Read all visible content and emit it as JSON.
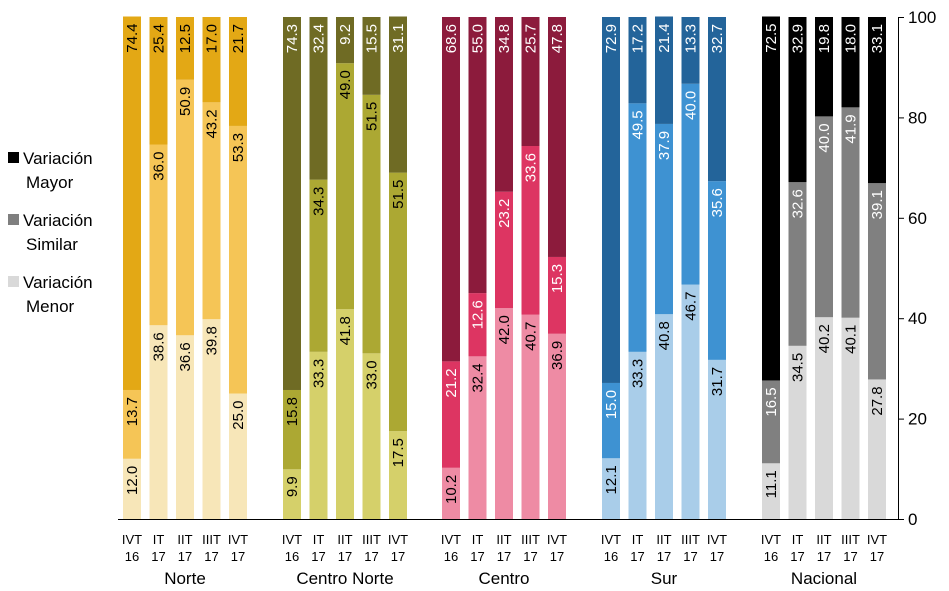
{
  "chart_data": {
    "type": "bar",
    "stacked": true,
    "orientation": "vertical",
    "title": "",
    "xlabel": "",
    "ylabel": "",
    "ylim": [
      0,
      100
    ],
    "y_ticks": [
      0,
      20,
      40,
      60,
      80,
      100
    ],
    "y_axis_side": "right",
    "grid": false,
    "legend_position": "left",
    "periods": [
      {
        "line1": "IVT",
        "line2": "16"
      },
      {
        "line1": "IT",
        "line2": "17"
      },
      {
        "line1": "IIT",
        "line2": "17"
      },
      {
        "line1": "IIIT",
        "line2": "17"
      },
      {
        "line1": "IVT",
        "line2": "17"
      }
    ],
    "series_order": [
      "Menor",
      "Similar",
      "Mayor"
    ],
    "legend": [
      {
        "key": "Mayor",
        "line1": "Variación",
        "line2": "Mayor",
        "color": "#000000"
      },
      {
        "key": "Similar",
        "line1": "Variación",
        "line2": "Similar",
        "color": "#7f7f7f"
      },
      {
        "key": "Menor",
        "line1": "Variación",
        "line2": "Menor",
        "color": "#d9d9d9"
      }
    ],
    "groups": [
      {
        "name": "Norte",
        "colors": {
          "Menor": "#f7e6b8",
          "Similar": "#f5c556",
          "Mayor": "#e3a815"
        },
        "label_colors": {
          "Menor": "#000000",
          "Similar": "#000000",
          "Mayor": "#000000"
        },
        "values": {
          "Menor": [
            12.0,
            38.6,
            36.6,
            39.8,
            25.0
          ],
          "Similar": [
            13.7,
            36.0,
            50.9,
            43.2,
            53.3
          ],
          "Mayor": [
            74.4,
            25.4,
            12.5,
            17.0,
            21.7
          ]
        }
      },
      {
        "name": "Centro Norte",
        "colors": {
          "Menor": "#d5d06a",
          "Similar": "#aca833",
          "Mayor": "#6f6b24"
        },
        "label_colors": {
          "Menor": "#000000",
          "Similar": "#000000",
          "Mayor": "#ffffff"
        },
        "values": {
          "Menor": [
            9.9,
            33.3,
            41.8,
            33.0,
            17.5
          ],
          "Similar": [
            15.8,
            34.3,
            49.0,
            51.5,
            51.5
          ],
          "Mayor": [
            74.3,
            32.4,
            9.2,
            15.5,
            31.1
          ]
        }
      },
      {
        "name": "Centro",
        "colors": {
          "Menor": "#ee8ba4",
          "Similar": "#dd3562",
          "Mayor": "#8c1b3c"
        },
        "label_colors": {
          "Menor": "#000000",
          "Similar": "#ffffff",
          "Mayor": "#ffffff"
        },
        "values": {
          "Menor": [
            10.2,
            32.4,
            42.0,
            40.7,
            36.9
          ],
          "Similar": [
            21.2,
            12.6,
            23.2,
            33.6,
            15.3
          ],
          "Mayor": [
            68.6,
            55.0,
            34.8,
            25.7,
            47.8
          ]
        }
      },
      {
        "name": "Sur",
        "colors": {
          "Menor": "#a9cde9",
          "Similar": "#3e92d2",
          "Mayor": "#23649a"
        },
        "label_colors": {
          "Menor": "#000000",
          "Similar": "#ffffff",
          "Mayor": "#ffffff"
        },
        "values": {
          "Menor": [
            12.1,
            33.3,
            40.8,
            46.7,
            31.7
          ],
          "Similar": [
            15.0,
            49.5,
            37.9,
            40.0,
            35.6
          ],
          "Mayor": [
            72.9,
            17.2,
            21.4,
            13.3,
            32.7
          ]
        }
      },
      {
        "name": "Nacional",
        "colors": {
          "Menor": "#d9d9d9",
          "Similar": "#808080",
          "Mayor": "#000000"
        },
        "label_colors": {
          "Menor": "#000000",
          "Similar": "#ffffff",
          "Mayor": "#ffffff"
        },
        "values": {
          "Menor": [
            11.1,
            34.5,
            40.2,
            40.1,
            27.8
          ],
          "Similar": [
            16.5,
            32.6,
            40.0,
            41.9,
            39.1
          ],
          "Mayor": [
            72.5,
            32.9,
            19.8,
            18.0,
            33.1
          ]
        }
      }
    ]
  }
}
